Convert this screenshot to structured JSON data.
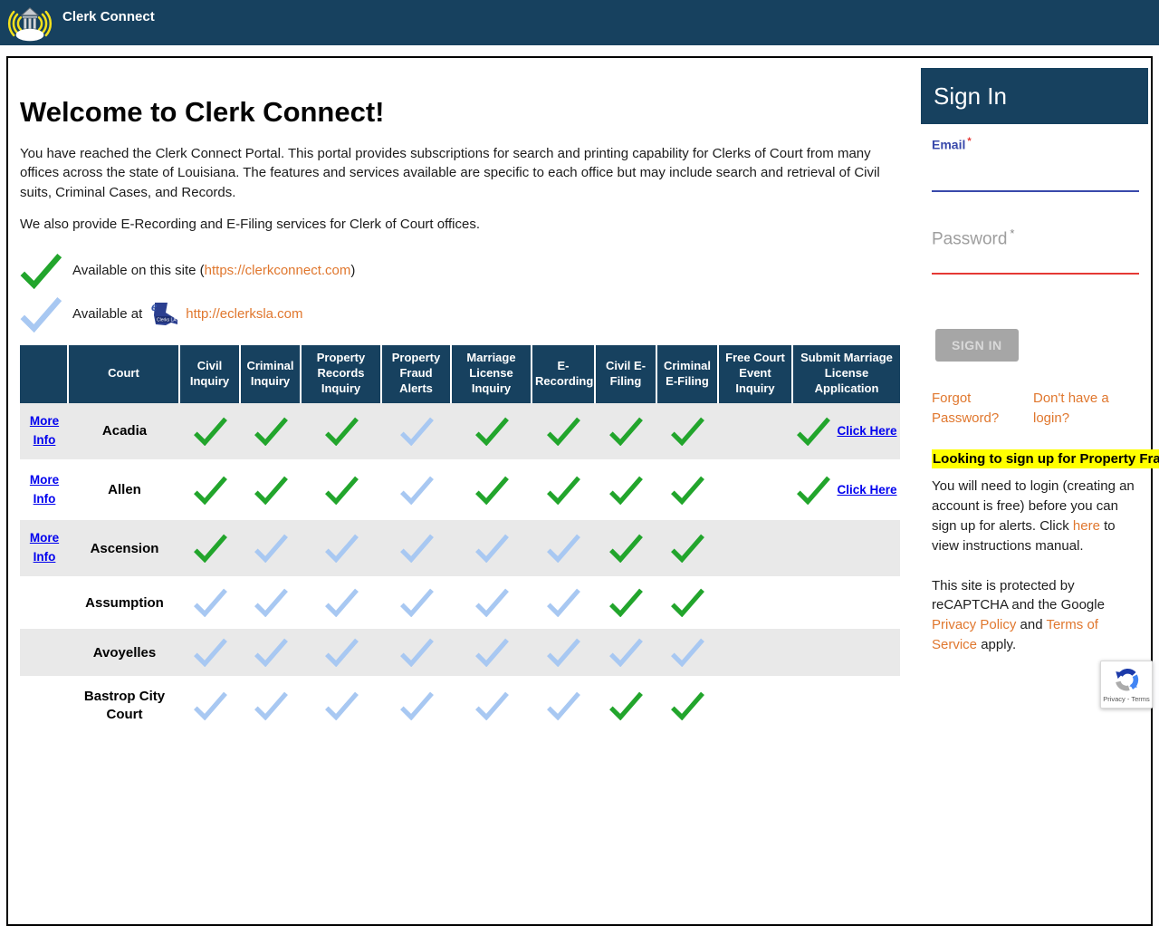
{
  "navbar": {
    "title": "Clerk Connect"
  },
  "main": {
    "heading": "Welcome to Clerk Connect!",
    "para1": "You have reached the Clerk Connect Portal. This portal provides subscriptions for search and printing capability for Clerks of Court from many offices across the state of Louisiana. The features and services available are specific to each office but may include search and retrieval of Civil suits, Criminal Cases, and Records.",
    "para2": "We also provide E-Recording and E-Filing services for Clerk of Court offices.",
    "availability": [
      {
        "check": "green",
        "prefix": "Available on this site (",
        "link": "https://clerkconnect.com",
        "suffix": ")"
      },
      {
        "check": "blue",
        "prefix": "Available at",
        "link": "http://eclerksla.com",
        "suffix": "",
        "logo_icon": "eclerksla-logo",
        "logo_text": "Clerks LA"
      }
    ]
  },
  "table": {
    "headers": [
      "",
      "Court",
      "Civil Inquiry",
      "Criminal Inquiry",
      "Property Records Inquiry",
      "Property Fraud Alerts",
      "Marriage License Inquiry",
      "E-Recording",
      "Civil E-Filing",
      "Criminal E-Filing",
      "Free Court Event Inquiry",
      "Submit Marriage License Application"
    ],
    "more_info_label": "More Info",
    "click_here_label": "Click Here",
    "rows": [
      {
        "court": "Acadia",
        "more_info": true,
        "checks": [
          "green",
          "green",
          "green",
          "blue",
          "green",
          "green",
          "green",
          "green",
          "",
          "green"
        ],
        "click_here": true
      },
      {
        "court": "Allen",
        "more_info": true,
        "checks": [
          "green",
          "green",
          "green",
          "blue",
          "green",
          "green",
          "green",
          "green",
          "",
          "green"
        ],
        "click_here": true
      },
      {
        "court": "Ascension",
        "more_info": true,
        "checks": [
          "green",
          "blue",
          "blue",
          "blue",
          "blue",
          "blue",
          "green",
          "green",
          "",
          ""
        ],
        "click_here": false
      },
      {
        "court": "Assumption",
        "more_info": false,
        "checks": [
          "blue",
          "blue",
          "blue",
          "blue",
          "blue",
          "blue",
          "green",
          "green",
          "",
          ""
        ],
        "click_here": false
      },
      {
        "court": "Avoyelles",
        "more_info": false,
        "checks": [
          "blue",
          "blue",
          "blue",
          "blue",
          "blue",
          "blue",
          "blue",
          "blue",
          "",
          ""
        ],
        "click_here": false
      },
      {
        "court": "Bastrop City Court",
        "more_info": false,
        "checks": [
          "blue",
          "blue",
          "blue",
          "blue",
          "blue",
          "blue",
          "green",
          "green",
          "",
          ""
        ],
        "click_here": false
      }
    ]
  },
  "signin": {
    "title": "Sign In",
    "email_label": "Email",
    "password_label": "Password",
    "required_marker": "*",
    "email_value": "",
    "password_value": "",
    "button_label": "SIGN IN",
    "forgot_link": "Forgot Password?",
    "no_login_link": "Don't have a login?",
    "alert_banner": "Looking to sign up for Property Fraud Alerts?",
    "login_note": {
      "before": "You will need to login (creating an account is free) before you can sign up for alerts. Click ",
      "link": "here",
      "after": " to view instructions manual."
    },
    "recaptcha_note": {
      "before": "This site is protected by reCAPTCHA and the Google ",
      "privacy_link": "Privacy Policy",
      "mid": " and ",
      "terms_link": "Terms of Service",
      "after": " apply."
    }
  },
  "recaptcha_badge": {
    "label": "Privacy - Terms",
    "icon": "recaptcha-icon"
  },
  "icons": [
    "clerk-connect-logo",
    "eclerksla-logo",
    "green-check-icon",
    "blue-check-icon",
    "recaptcha-icon"
  ],
  "colors": {
    "navy": "#17415f",
    "check_green": "#22a52c",
    "check_blue": "#a8c8f2",
    "link_orange": "#e0772e",
    "link_blue": "#0000ee",
    "email_accent": "#3949ab",
    "password_accent": "#e53935",
    "highlight_yellow": "#ffff00",
    "row_gray": "#e9e9e9"
  }
}
